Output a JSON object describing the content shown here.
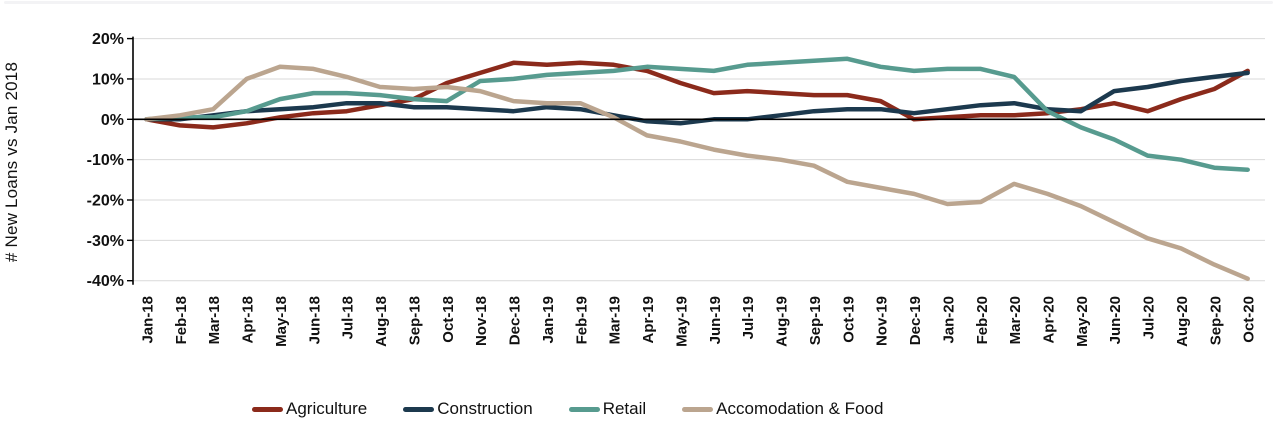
{
  "y_axis": {
    "title": "# New Loans vs Jan 2018",
    "ticks": [
      {
        "label": "20%",
        "value": 20
      },
      {
        "label": "10%",
        "value": 10
      },
      {
        "label": "0%",
        "value": 0
      },
      {
        "label": "-10%",
        "value": -10
      },
      {
        "label": "-20%",
        "value": -20
      },
      {
        "label": "-30%",
        "value": -30
      },
      {
        "label": "-40%",
        "value": -40
      }
    ]
  },
  "colors": {
    "gridline": "#D9D9D9",
    "axis": "#000000",
    "agriculture": "#8B2A1B",
    "construction": "#1C394E",
    "retail": "#579B8F",
    "accomodation": "#BBA58F"
  },
  "chart_data": {
    "type": "line",
    "title": "",
    "xlabel": "",
    "ylabel": "# New Loans vs Jan 2018",
    "ylim": [
      -40,
      20
    ],
    "grid": true,
    "legend_position": "bottom",
    "x": [
      "Jan-18",
      "Feb-18",
      "Mar-18",
      "Apr-18",
      "May-18",
      "Jun-18",
      "Jul-18",
      "Aug-18",
      "Sep-18",
      "Oct-18",
      "Nov-18",
      "Dec-18",
      "Jan-19",
      "Feb-19",
      "Mar-19",
      "Apr-19",
      "May-19",
      "Jun-19",
      "Jul-19",
      "Aug-19",
      "Sep-19",
      "Oct-19",
      "Nov-19",
      "Dec-19",
      "Jan-20",
      "Feb-20",
      "Mar-20",
      "Apr-20",
      "May-20",
      "Jun-20",
      "Jul-20",
      "Aug-20",
      "Sep-20",
      "Oct-20"
    ],
    "series": [
      {
        "name": "Agriculture",
        "color": "#8B2A1B",
        "values": [
          0,
          -1.5,
          -2,
          -1,
          0.5,
          1.5,
          2,
          3.5,
          5,
          9,
          11.5,
          14,
          13.5,
          14,
          13.5,
          12,
          9,
          6.5,
          7,
          6.5,
          6,
          6,
          4.5,
          0,
          0.5,
          1,
          1,
          1.5,
          2.5,
          4,
          2,
          5,
          7.5,
          12
        ]
      },
      {
        "name": "Construction",
        "color": "#1C394E",
        "values": [
          0,
          0,
          1,
          2,
          2.5,
          3,
          4,
          4,
          3,
          3,
          2.5,
          2,
          3,
          2.5,
          1,
          -0.5,
          -1,
          0,
          0,
          1,
          2,
          2.5,
          2.5,
          1.5,
          2.5,
          3.5,
          4,
          2.5,
          2,
          7,
          8,
          9.5,
          10.5,
          11.5
        ]
      },
      {
        "name": "Retail",
        "color": "#579B8F",
        "values": [
          0,
          0.5,
          0.5,
          2,
          5,
          6.5,
          6.5,
          6,
          5,
          4.5,
          9.5,
          10,
          11,
          11.5,
          12,
          13,
          12.5,
          12,
          13.5,
          14,
          14.5,
          15,
          13,
          12,
          12.5,
          12.5,
          10.5,
          2,
          -2,
          -5,
          -9,
          -10,
          -12,
          -12.5
        ]
      },
      {
        "name": "Accomodation & Food",
        "color": "#BBA58F",
        "values": [
          0,
          1,
          2.5,
          10,
          13,
          12.5,
          10.5,
          8,
          7.5,
          8,
          7,
          4.5,
          4,
          4,
          0.5,
          -4,
          -5.5,
          -7.5,
          -9,
          -10,
          -11.5,
          -15.5,
          -17,
          -18.5,
          -21,
          -20.5,
          -16,
          -18.5,
          -21.5,
          -25.5,
          -29.5,
          -32,
          -36,
          -39.5
        ]
      }
    ]
  }
}
